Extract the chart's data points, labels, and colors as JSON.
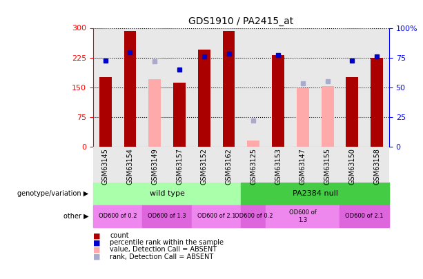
{
  "title": "GDS1910 / PA2415_at",
  "samples": [
    "GSM63145",
    "GSM63154",
    "GSM63149",
    "GSM63157",
    "GSM63152",
    "GSM63162",
    "GSM63125",
    "GSM63153",
    "GSM63147",
    "GSM63155",
    "GSM63150",
    "GSM63158"
  ],
  "count_values": [
    175,
    293,
    0,
    162,
    245,
    292,
    0,
    232,
    0,
    0,
    175,
    225
  ],
  "absent_value_values": [
    0,
    0,
    170,
    0,
    0,
    0,
    15,
    0,
    147,
    152,
    0,
    0
  ],
  "percentile_values": [
    218,
    238,
    0,
    195,
    228,
    235,
    0,
    232,
    0,
    0,
    218,
    228
  ],
  "absent_rank_values": [
    0,
    0,
    215,
    0,
    0,
    0,
    65,
    0,
    160,
    165,
    0,
    0
  ],
  "left_ylim": [
    0,
    300
  ],
  "left_yticks": [
    0,
    75,
    150,
    225,
    300
  ],
  "right_yticks": [
    0,
    25,
    50,
    75,
    100
  ],
  "right_yticklabels": [
    "0",
    "25",
    "50",
    "75",
    "100%"
  ],
  "bar_color": "#aa0000",
  "absent_value_color": "#ffaaaa",
  "percentile_color": "#0000cc",
  "absent_rank_color": "#aaaacc",
  "genotype_row": {
    "label": "genotype/variation",
    "groups": [
      {
        "text": "wild type",
        "start": 0,
        "end": 6,
        "color": "#aaffaa"
      },
      {
        "text": "PA2384 null",
        "start": 6,
        "end": 12,
        "color": "#44cc44"
      }
    ]
  },
  "other_row": {
    "label": "other",
    "groups": [
      {
        "text": "OD600 of 0.2",
        "start": 0,
        "end": 2,
        "color": "#ee88ee"
      },
      {
        "text": "OD600 of 1.3",
        "start": 2,
        "end": 4,
        "color": "#dd66dd"
      },
      {
        "text": "OD600 of 2.1",
        "start": 4,
        "end": 6,
        "color": "#ee88ee"
      },
      {
        "text": "OD600 of 0.2",
        "start": 6,
        "end": 7,
        "color": "#dd66dd"
      },
      {
        "text": "OD600 of\n1.3",
        "start": 7,
        "end": 10,
        "color": "#ee88ee"
      },
      {
        "text": "OD600 of 2.1",
        "start": 10,
        "end": 12,
        "color": "#dd66dd"
      }
    ]
  },
  "legend_items": [
    {
      "label": "count",
      "color": "#aa0000"
    },
    {
      "label": "percentile rank within the sample",
      "color": "#0000cc"
    },
    {
      "label": "value, Detection Call = ABSENT",
      "color": "#ffaaaa"
    },
    {
      "label": "rank, Detection Call = ABSENT",
      "color": "#aaaacc"
    }
  ]
}
